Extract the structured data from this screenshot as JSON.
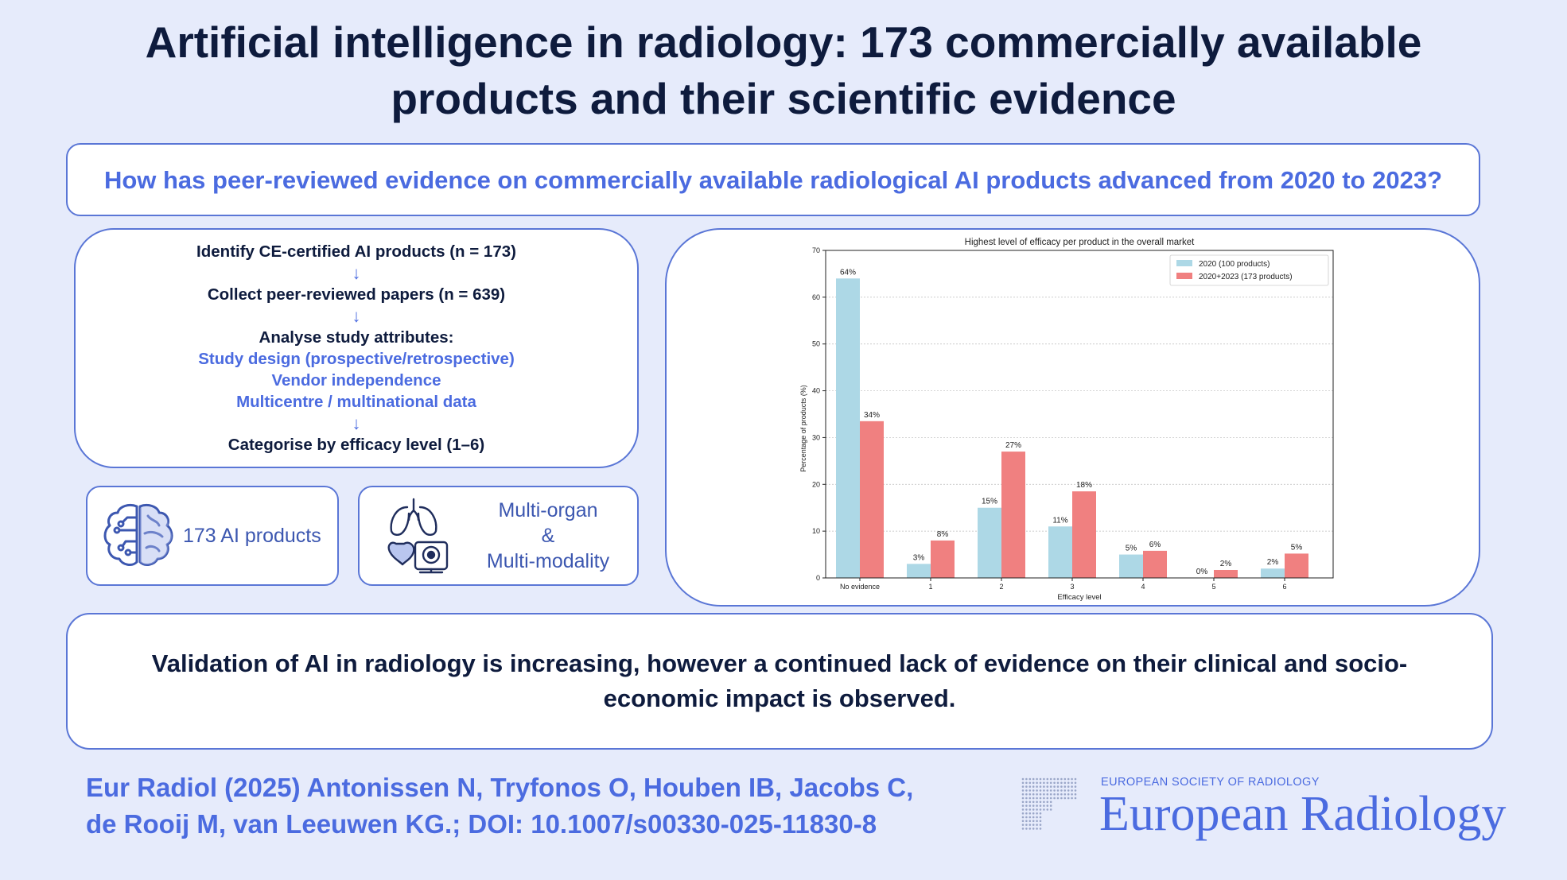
{
  "title": "Artificial intelligence in radiology: 173 commercially available products and their scientific evidence",
  "question": "How has peer-reviewed evidence on commercially available radiological AI products advanced from 2020 to 2023?",
  "methods": {
    "step1": "Identify CE-certified AI products  (n = 173)",
    "step2": "Collect peer-reviewed papers (n = 639)",
    "step3": "Analyse study attributes:",
    "attr1": "Study design (prospective/retrospective)",
    "attr2": "Vendor independence",
    "attr3": "Multicentre / multinational data",
    "step4": "Categorise by efficacy level (1–6)",
    "arrow": "↓"
  },
  "stats": {
    "products": "173 AI products",
    "multi_line1": "Multi-organ",
    "multi_amp": "&",
    "multi_line2": "Multi-modality",
    "products_icon": "brain-circuit-icon",
    "multi_icon": "lungs-heart-scanner-icon"
  },
  "chart_data": {
    "type": "bar",
    "title": "Highest level of efficacy per product in the overall market",
    "xlabel": "Efficacy level",
    "ylabel": "Percentage of products (%)",
    "ylim": [
      0,
      70
    ],
    "yticks": [
      0,
      10,
      20,
      30,
      40,
      50,
      60,
      70
    ],
    "grid": true,
    "legend_position": "top-right",
    "categories": [
      "No evidence",
      "1",
      "2",
      "3",
      "4",
      "5",
      "6"
    ],
    "series": [
      {
        "name": "2020 (100 products)",
        "color": "#add8e6",
        "values": [
          64,
          3,
          15,
          11,
          5,
          0,
          2
        ],
        "labels": [
          "64%",
          "3%",
          "15%",
          "11%",
          "5%",
          "0%",
          "2%"
        ]
      },
      {
        "name": "2020+2023 (173 products)",
        "color": "#f08080",
        "values": [
          33.5,
          8,
          27,
          18.5,
          5.8,
          1.7,
          5.2
        ],
        "labels": [
          "34%",
          "8%",
          "27%",
          "18%",
          "6%",
          "2%",
          "5%"
        ]
      }
    ]
  },
  "conclusion": "Validation of AI in radiology is increasing, however a continued lack of evidence on their clinical and socio-economic impact is observed.",
  "citation": {
    "line1": "Eur Radiol (2025) Antonissen N, Tryfonos O, Houben IB, Jacobs C,",
    "line2": "de Rooij M, van Leeuwen KG.; DOI: 10.1007/s00330-025-11830-8"
  },
  "journal": {
    "society": "EUROPEAN SOCIETY OF RADIOLOGY",
    "name": "European Radiology",
    "logo_icon": "esr-dot-grid-logo"
  },
  "colors": {
    "background": "#e6ebfb",
    "accent": "#4b6be0",
    "dark_text": "#0e1b3d",
    "border": "#5a76d6"
  }
}
